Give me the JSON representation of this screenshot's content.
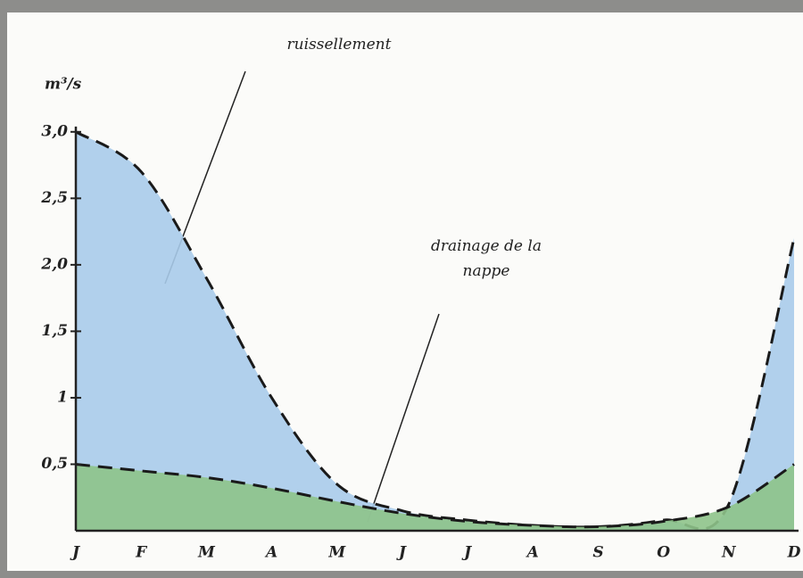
{
  "chart_data": {
    "type": "area",
    "y_label": "m³/s",
    "annotations": [
      "ruissellement",
      "drainage de la nappe"
    ],
    "categories": [
      "J",
      "F",
      "M",
      "A",
      "M",
      "J",
      "J",
      "A",
      "S",
      "O",
      "N",
      "D"
    ],
    "series": [
      {
        "name": "ruissellement",
        "color": "#a8cbea",
        "values": [
          3.0,
          2.7,
          1.9,
          1.0,
          0.35,
          0.15,
          0.08,
          0.04,
          0.03,
          0.08,
          0.2,
          2.2
        ]
      },
      {
        "name": "drainage de la nappe",
        "color": "#8ec38a",
        "values": [
          0.5,
          0.45,
          0.4,
          0.32,
          0.22,
          0.13,
          0.07,
          0.04,
          0.03,
          0.07,
          0.18,
          0.5
        ]
      }
    ],
    "ylim": [
      0,
      3.2
    ],
    "yticks": [
      {
        "value": 0.5,
        "label": "0,5"
      },
      1,
      {
        "value": 1.5,
        "label": "1,5"
      },
      {
        "value": 2,
        "label": "2,0"
      },
      {
        "value": 2.5,
        "label": "2,5"
      },
      {
        "value": 3,
        "label": "3,0"
      }
    ]
  }
}
